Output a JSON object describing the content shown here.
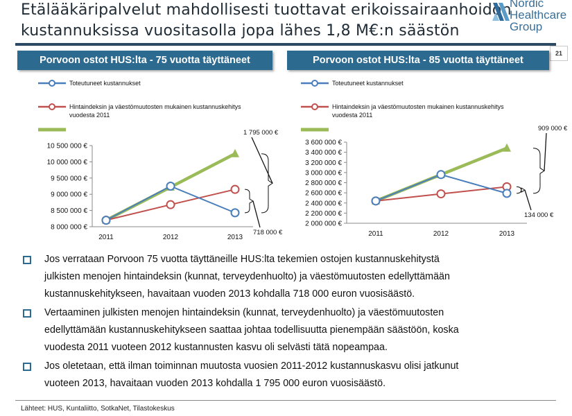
{
  "title": {
    "line1": "Etälääkäripalvelut mahdollisesti tuottavat erikoissairaanhoidon",
    "line2": "kustannuksissa vuositasolla jopa lähes 1,8 M€:n säästön"
  },
  "logo": {
    "line1": "Nordic",
    "line2": "Healthcare",
    "line3": "Group"
  },
  "page_number": "21",
  "colors": {
    "blue": "#4a7ebb",
    "red": "#c0504d",
    "green": "#9bbb59",
    "header": "#2d6a8f"
  },
  "chart_data": [
    {
      "type": "line",
      "title": "Porvoon ostot HUS:lta - 75 vuotta täyttäneet",
      "categories": [
        "2011",
        "2012",
        "2013"
      ],
      "ylim": [
        8000000,
        10500000
      ],
      "yticks": [
        "8 000 000 €",
        "8 500 000 €",
        "9 000 000 €",
        "9 500 000 €",
        "10 000 000 €",
        "10 500 000 €"
      ],
      "series": [
        {
          "name": "Toteutuneet kustannukset",
          "values": [
            8200000,
            9250000,
            8430000
          ]
        },
        {
          "name": "Hintaindeksin ja väestömuutosten mukainen kustannuskehitys vuodesta 2011",
          "name_line1": "Hintaindeksin ja väestömuutosten mukainen kustannuskehitys",
          "name_line2": "vuodesta 2011",
          "values": [
            8200000,
            8680000,
            9150000
          ]
        },
        {
          "name": "",
          "values": [
            8200000,
            9220000,
            10250000
          ]
        }
      ],
      "annotations": [
        "1 795 000 €",
        "718 000 €"
      ]
    },
    {
      "type": "line",
      "title": "Porvoon ostot HUS:lta - 85 vuotta täyttäneet",
      "categories": [
        "2011",
        "2012",
        "2013"
      ],
      "ylim": [
        2000000,
        3600000
      ],
      "yticks": [
        "2 000 000 €",
        "2 200 000 €",
        "2 400 000 €",
        "2 600 000 €",
        "2 800 000 €",
        "3 000 000 €",
        "3 200 000 €",
        "3 400 000 €",
        "3 600 000 €"
      ],
      "series": [
        {
          "name": "Toteutuneet kustannukset",
          "values": [
            2440000,
            2960000,
            2590000
          ]
        },
        {
          "name": "Hintaindeksin ja väestömuutosten mukainen kustannuskehitys vuodesta 2011",
          "name_line1": "Hintaindeksin ja väestömuutosten mukainen kustannuskehitys",
          "name_line2": "vuodesta 2011",
          "values": [
            2440000,
            2580000,
            2720000
          ]
        },
        {
          "name": "",
          "values": [
            2440000,
            2960000,
            3480000
          ]
        }
      ],
      "annotations": [
        "909 000 €",
        "134 000 €"
      ]
    }
  ],
  "bullets": [
    [
      "Jos verrataan Porvoon 75 vuotta täyttäneille HUS:lta tekemien ostojen kustannuskehitystä",
      "julkisten menojen hintaindeksin (kunnat, terveydenhuolto) ja väestömuutosten edellyttämään",
      "kustannuskehitykseen, havaitaan vuoden 2013 kohdalla 718 000 euron vuosisäästö."
    ],
    [
      "Vertaaminen julkisten menojen hintaindeksin (kunnat, terveydenhuolto) ja väestömuutosten",
      "edellyttämään kustannuskehitykseen saattaa johtaa todellisuutta pienempään säästöön, koska",
      "vuodesta 2011 vuoteen 2012 kustannusten kasvu oli selvästi tätä nopeampaa."
    ],
    [
      "Jos oletetaan, että ilman toiminnan muutosta vuosien 2011-2012 kustannuskasvu olisi jatkunut",
      "vuoteen 2013, havaitaan vuoden 2013 kohdalla 1 795 000 euron vuosisäästö."
    ]
  ],
  "footer": "Lähteet: HUS, Kuntaliitto, SotkaNet, Tilastokeskus"
}
